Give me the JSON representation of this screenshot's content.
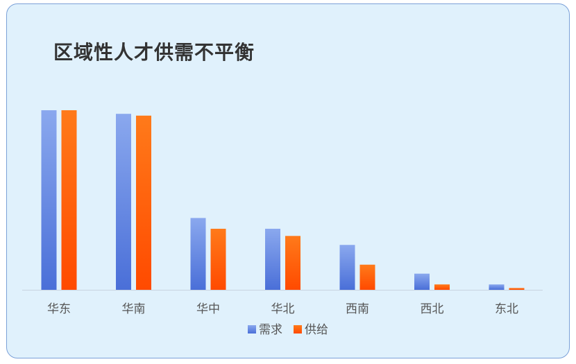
{
  "chart_data": {
    "type": "bar",
    "title": "区域性人才供需不平衡",
    "categories": [
      "华东",
      "华南",
      "华中",
      "华北",
      "西南",
      "西北",
      "东北"
    ],
    "series": [
      {
        "name": "需求",
        "values": [
          100,
          98,
          40,
          34,
          25,
          9,
          3
        ],
        "color": "#5a7fe0"
      },
      {
        "name": "供给",
        "values": [
          100,
          97,
          34,
          30,
          14,
          3,
          1
        ],
        "color": "#ff5a0a"
      }
    ],
    "ylim": [
      0,
      100
    ],
    "grid": false,
    "legend_position": "bottom"
  }
}
